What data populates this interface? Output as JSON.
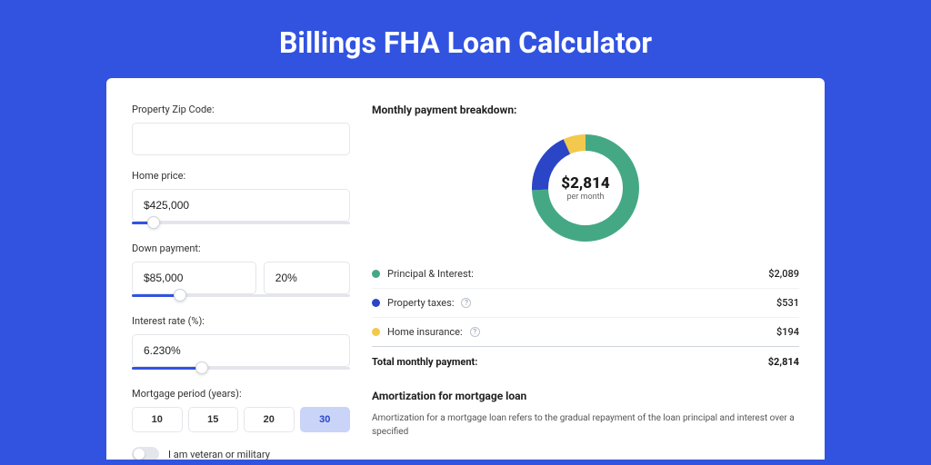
{
  "page": {
    "title": "Billings FHA Loan Calculator",
    "background_color": "#3253e0"
  },
  "form": {
    "zip": {
      "label": "Property Zip Code:",
      "value": ""
    },
    "home_price": {
      "label": "Home price:",
      "value": "$425,000",
      "slider_pct": 10
    },
    "down_payment": {
      "label": "Down payment:",
      "amount": "$85,000",
      "percent": "20%",
      "slider_pct": 22
    },
    "interest_rate": {
      "label": "Interest rate (%):",
      "value": "6.230%",
      "slider_pct": 32
    },
    "mortgage_period": {
      "label": "Mortgage period (years):",
      "options": [
        "10",
        "15",
        "20",
        "30"
      ],
      "selected": "30"
    },
    "veteran_toggle": {
      "label": "I am veteran or military",
      "checked": false
    }
  },
  "breakdown": {
    "title": "Monthly payment breakdown:",
    "donut": {
      "center_amount": "$2,814",
      "center_sub": "per month",
      "slices": [
        {
          "key": "pi",
          "value": 2089,
          "color": "#45a884"
        },
        {
          "key": "tax",
          "value": 531,
          "color": "#2a46c7"
        },
        {
          "key": "ins",
          "value": 194,
          "color": "#f2c94c"
        }
      ],
      "stroke_width": 18,
      "radius": 50
    },
    "items": [
      {
        "label": "Principal & Interest:",
        "value": "$2,089",
        "color": "#45a884",
        "help": false
      },
      {
        "label": "Property taxes:",
        "value": "$531",
        "color": "#2a46c7",
        "help": true
      },
      {
        "label": "Home insurance:",
        "value": "$194",
        "color": "#f2c94c",
        "help": true
      }
    ],
    "total": {
      "label": "Total monthly payment:",
      "value": "$2,814"
    }
  },
  "amortization": {
    "title": "Amortization for mortgage loan",
    "text": "Amortization for a mortgage loan refers to the gradual repayment of the loan principal and interest over a specified"
  }
}
